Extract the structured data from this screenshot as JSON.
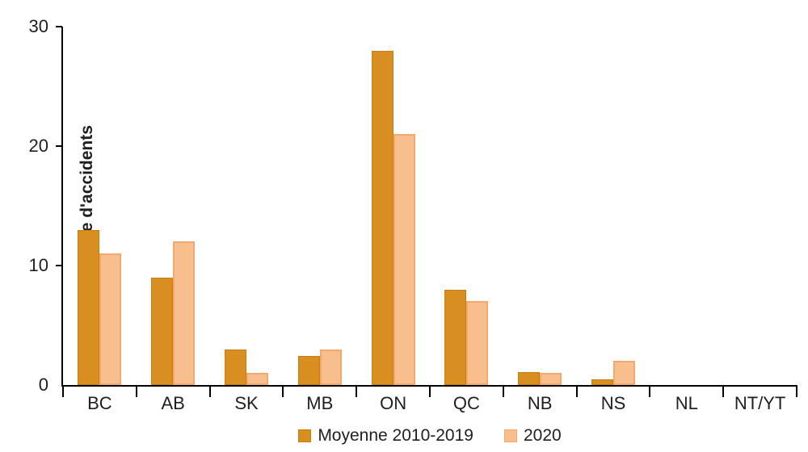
{
  "chart_data": {
    "type": "bar",
    "title": "",
    "xlabel": "",
    "ylabel": "Nombre d'accidents",
    "ylim": [
      0,
      30
    ],
    "yticks": [
      0,
      10,
      20,
      30
    ],
    "grid": false,
    "legend_position": "bottom-center",
    "categories": [
      "BC",
      "AB",
      "SK",
      "MB",
      "ON",
      "QC",
      "NB",
      "NS",
      "NL",
      "NT/YT"
    ],
    "series": [
      {
        "name": "Moyenne 2010-2019",
        "color": "#D98E20",
        "border_color": "#C87E0F",
        "values": [
          13,
          9,
          3,
          2.4,
          28,
          8,
          1.1,
          0.5,
          0,
          0
        ]
      },
      {
        "name": "2020",
        "color": "#F9BE8E",
        "border_color": "#F3A96E",
        "values": [
          11,
          12,
          1,
          3,
          21,
          7,
          1,
          2,
          0,
          0
        ]
      }
    ],
    "colors": {
      "axis": "#000000",
      "text": "#1F1F1F",
      "background": "#FFFFFF"
    }
  }
}
